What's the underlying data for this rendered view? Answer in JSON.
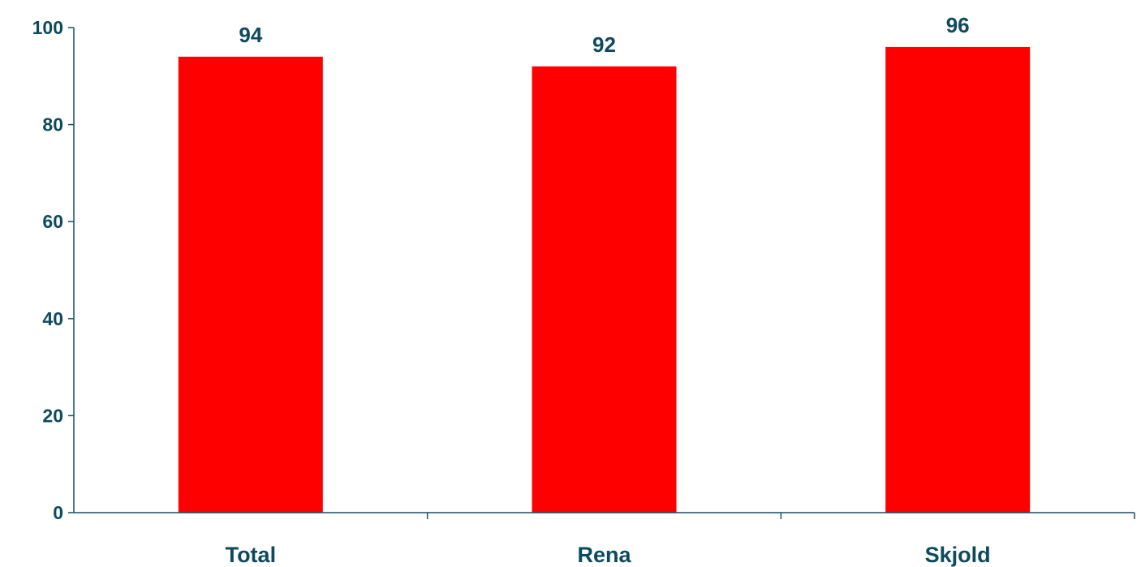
{
  "chart_data": {
    "type": "bar",
    "title": "",
    "xlabel": "",
    "ylabel": "",
    "categories": [
      "Total",
      "Rena",
      "Skjold"
    ],
    "values": [
      94,
      92,
      96
    ],
    "data_labels": [
      "94",
      "92",
      "96"
    ],
    "ylim": [
      0,
      100
    ],
    "yticks": [
      "0",
      "20",
      "40",
      "60",
      "80",
      "100"
    ],
    "ytick_values": [
      0,
      20,
      40,
      60,
      80,
      100
    ],
    "grid": false,
    "legend": "none",
    "bar_color": "#ff0000",
    "text_color": "#0d4a5e"
  }
}
